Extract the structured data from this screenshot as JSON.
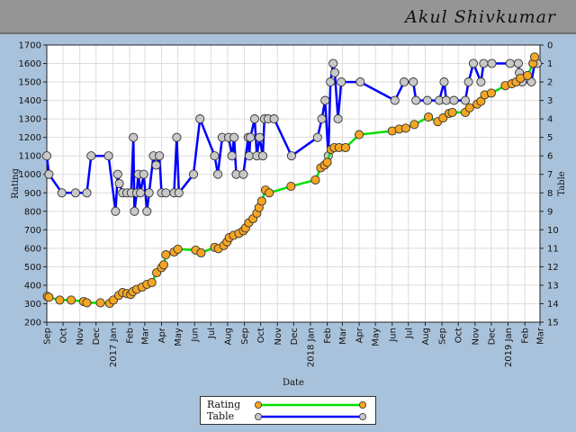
{
  "header": {
    "name": "Akul Shivkumar"
  },
  "legend": {
    "rating_label": "Rating",
    "table_label": "Table"
  },
  "colors": {
    "header_bg": "#959595",
    "page_bg": "#a9c2db",
    "rating_line": "#00e000",
    "rating_marker": "#f5a623",
    "table_line": "#0000ff",
    "table_marker": "#c8c8c8"
  },
  "chart_data": {
    "type": "line",
    "title": "",
    "xlabel": "Date",
    "ylabel": "Rating",
    "y2label": "Table",
    "grid": true,
    "legend_position": "bottom-center",
    "xlim": [
      "2016-09-01",
      "2019-03-01"
    ],
    "ylim": [
      200,
      1700
    ],
    "y2lim": [
      15,
      0
    ],
    "yticks": [
      200,
      300,
      400,
      500,
      600,
      700,
      800,
      900,
      1000,
      1100,
      1200,
      1300,
      1400,
      1500,
      1600,
      1700
    ],
    "y2ticks": [
      0,
      1,
      2,
      3,
      4,
      5,
      6,
      7,
      8,
      9,
      10,
      11,
      12,
      13,
      14,
      15
    ],
    "xticks": [
      {
        "date": "2016-09-01",
        "label": "Sep"
      },
      {
        "date": "2016-10-01",
        "label": "Oct"
      },
      {
        "date": "2016-11-01",
        "label": "Nov"
      },
      {
        "date": "2016-12-01",
        "label": "Dec"
      },
      {
        "date": "2017-01-01",
        "label": "2017 Jan"
      },
      {
        "date": "2017-02-01",
        "label": "Feb"
      },
      {
        "date": "2017-03-01",
        "label": "Mar"
      },
      {
        "date": "2017-04-01",
        "label": "Apr"
      },
      {
        "date": "2017-05-01",
        "label": "May"
      },
      {
        "date": "2017-06-01",
        "label": "Jun"
      },
      {
        "date": "2017-07-01",
        "label": "Jul"
      },
      {
        "date": "2017-08-01",
        "label": "Aug"
      },
      {
        "date": "2017-09-01",
        "label": "Sep"
      },
      {
        "date": "2017-10-01",
        "label": "Oct"
      },
      {
        "date": "2017-11-01",
        "label": "Nov"
      },
      {
        "date": "2017-12-01",
        "label": "Dec"
      },
      {
        "date": "2018-01-01",
        "label": "2018 Jan"
      },
      {
        "date": "2018-02-01",
        "label": "Feb"
      },
      {
        "date": "2018-03-01",
        "label": "Mar"
      },
      {
        "date": "2018-04-01",
        "label": "Apr"
      },
      {
        "date": "2018-05-01",
        "label": "May"
      },
      {
        "date": "2018-06-01",
        "label": "Jun"
      },
      {
        "date": "2018-07-01",
        "label": "Jul"
      },
      {
        "date": "2018-08-01",
        "label": "Aug"
      },
      {
        "date": "2018-09-01",
        "label": "Sep"
      },
      {
        "date": "2018-10-01",
        "label": "Oct"
      },
      {
        "date": "2018-11-01",
        "label": "Nov"
      },
      {
        "date": "2018-12-01",
        "label": "Dec"
      },
      {
        "date": "2019-01-01",
        "label": "2019 Jan"
      },
      {
        "date": "2019-02-01",
        "label": "Feb"
      },
      {
        "date": "2019-03-01",
        "label": "Mar"
      }
    ],
    "series": [
      {
        "name": "Rating",
        "axis": "left",
        "points": [
          [
            "2016-09-02",
            340
          ],
          [
            "2016-09-05",
            335
          ],
          [
            "2016-09-25",
            320
          ],
          [
            "2016-10-16",
            320
          ],
          [
            "2016-11-08",
            312
          ],
          [
            "2016-11-14",
            305
          ],
          [
            "2016-12-09",
            305
          ],
          [
            "2016-12-26",
            302
          ],
          [
            "2017-01-02",
            320
          ],
          [
            "2017-01-12",
            345
          ],
          [
            "2017-01-19",
            360
          ],
          [
            "2017-01-27",
            355
          ],
          [
            "2017-02-03",
            350
          ],
          [
            "2017-02-07",
            365
          ],
          [
            "2017-02-14",
            378
          ],
          [
            "2017-02-24",
            390
          ],
          [
            "2017-03-05",
            405
          ],
          [
            "2017-03-14",
            415
          ],
          [
            "2017-03-23",
            468
          ],
          [
            "2017-04-01",
            495
          ],
          [
            "2017-04-05",
            510
          ],
          [
            "2017-04-09",
            565
          ],
          [
            "2017-04-24",
            580
          ],
          [
            "2017-05-01",
            595
          ],
          [
            "2017-06-03",
            590
          ],
          [
            "2017-06-13",
            575
          ],
          [
            "2017-07-08",
            605
          ],
          [
            "2017-07-15",
            598
          ],
          [
            "2017-07-25",
            615
          ],
          [
            "2017-07-31",
            635
          ],
          [
            "2017-08-04",
            658
          ],
          [
            "2017-08-12",
            670
          ],
          [
            "2017-08-22",
            680
          ],
          [
            "2017-08-30",
            695
          ],
          [
            "2017-09-03",
            710
          ],
          [
            "2017-09-09",
            738
          ],
          [
            "2017-09-17",
            760
          ],
          [
            "2017-09-24",
            790
          ],
          [
            "2017-09-28",
            820
          ],
          [
            "2017-10-03",
            855
          ],
          [
            "2017-10-10",
            915
          ],
          [
            "2017-10-17",
            900
          ],
          [
            "2017-11-26",
            935
          ],
          [
            "2018-01-10",
            970
          ],
          [
            "2018-01-20",
            1035
          ],
          [
            "2018-01-27",
            1050
          ],
          [
            "2018-02-01",
            1065
          ],
          [
            "2018-02-08",
            1135
          ],
          [
            "2018-02-14",
            1145
          ],
          [
            "2018-02-23",
            1145
          ],
          [
            "2018-03-07",
            1145
          ],
          [
            "2018-04-01",
            1215
          ],
          [
            "2018-06-01",
            1235
          ],
          [
            "2018-06-14",
            1245
          ],
          [
            "2018-06-26",
            1250
          ],
          [
            "2018-07-12",
            1270
          ],
          [
            "2018-08-07",
            1310
          ],
          [
            "2018-08-24",
            1285
          ],
          [
            "2018-09-03",
            1305
          ],
          [
            "2018-09-14",
            1330
          ],
          [
            "2018-09-20",
            1335
          ],
          [
            "2018-10-14",
            1335
          ],
          [
            "2018-10-22",
            1360
          ],
          [
            "2018-11-05",
            1380
          ],
          [
            "2018-11-12",
            1395
          ],
          [
            "2018-11-19",
            1430
          ],
          [
            "2018-12-01",
            1440
          ],
          [
            "2018-12-27",
            1480
          ],
          [
            "2019-01-08",
            1490
          ],
          [
            "2019-01-16",
            1500
          ],
          [
            "2019-01-24",
            1520
          ],
          [
            "2019-02-06",
            1535
          ],
          [
            "2019-02-16",
            1600
          ],
          [
            "2019-02-19",
            1635
          ]
        ]
      },
      {
        "name": "Table",
        "axis": "right",
        "points": [
          [
            "2016-09-01",
            6
          ],
          [
            "2016-09-05",
            7
          ],
          [
            "2016-09-29",
            8
          ],
          [
            "2016-10-24",
            8
          ],
          [
            "2016-11-14",
            8
          ],
          [
            "2016-11-22",
            6
          ],
          [
            "2016-12-24",
            6
          ],
          [
            "2017-01-06",
            9
          ],
          [
            "2017-01-10",
            7
          ],
          [
            "2017-01-13",
            7.5
          ],
          [
            "2017-01-19",
            8
          ],
          [
            "2017-01-27",
            8
          ],
          [
            "2017-02-04",
            8
          ],
          [
            "2017-02-08",
            5
          ],
          [
            "2017-02-10",
            9
          ],
          [
            "2017-02-14",
            8
          ],
          [
            "2017-02-17",
            7
          ],
          [
            "2017-02-21",
            8
          ],
          [
            "2017-02-27",
            7
          ],
          [
            "2017-03-05",
            9
          ],
          [
            "2017-03-09",
            8
          ],
          [
            "2017-03-17",
            6
          ],
          [
            "2017-03-22",
            6.5
          ],
          [
            "2017-03-28",
            6
          ],
          [
            "2017-04-01",
            8
          ],
          [
            "2017-04-09",
            8
          ],
          [
            "2017-04-24",
            8
          ],
          [
            "2017-04-29",
            5
          ],
          [
            "2017-05-03",
            8
          ],
          [
            "2017-05-30",
            7
          ],
          [
            "2017-06-11",
            4
          ],
          [
            "2017-07-08",
            6
          ],
          [
            "2017-07-14",
            7
          ],
          [
            "2017-07-22",
            5
          ],
          [
            "2017-08-03",
            5
          ],
          [
            "2017-08-09",
            6
          ],
          [
            "2017-08-13",
            5
          ],
          [
            "2017-08-17",
            7
          ],
          [
            "2017-08-30",
            7
          ],
          [
            "2017-09-08",
            5
          ],
          [
            "2017-09-10",
            6
          ],
          [
            "2017-09-12",
            5
          ],
          [
            "2017-09-20",
            4
          ],
          [
            "2017-09-24",
            6
          ],
          [
            "2017-09-29",
            5
          ],
          [
            "2017-10-05",
            6
          ],
          [
            "2017-10-08",
            4
          ],
          [
            "2017-10-15",
            4
          ],
          [
            "2017-10-26",
            4
          ],
          [
            "2017-11-27",
            6
          ],
          [
            "2018-01-14",
            5
          ],
          [
            "2018-01-22",
            4
          ],
          [
            "2018-01-28",
            3
          ],
          [
            "2018-02-03",
            6
          ],
          [
            "2018-02-07",
            2
          ],
          [
            "2018-02-12",
            1
          ],
          [
            "2018-02-15",
            1.5
          ],
          [
            "2018-02-21",
            4
          ],
          [
            "2018-02-27",
            2
          ],
          [
            "2018-04-03",
            2
          ],
          [
            "2018-06-06",
            3
          ],
          [
            "2018-06-23",
            2
          ],
          [
            "2018-07-10",
            2
          ],
          [
            "2018-07-15",
            3
          ],
          [
            "2018-08-05",
            3
          ],
          [
            "2018-08-27",
            3
          ],
          [
            "2018-09-05",
            2
          ],
          [
            "2018-09-09",
            3
          ],
          [
            "2018-09-23",
            3
          ],
          [
            "2018-10-14",
            3
          ],
          [
            "2018-10-20",
            2
          ],
          [
            "2018-10-29",
            1
          ],
          [
            "2018-11-12",
            2
          ],
          [
            "2018-11-17",
            1
          ],
          [
            "2018-12-02",
            1
          ],
          [
            "2019-01-05",
            1
          ],
          [
            "2019-01-20",
            1
          ],
          [
            "2019-01-22",
            1.5
          ],
          [
            "2019-01-27",
            2
          ],
          [
            "2019-02-13",
            2
          ],
          [
            "2019-02-19",
            1
          ],
          [
            "2019-02-24",
            1
          ]
        ]
      }
    ]
  }
}
